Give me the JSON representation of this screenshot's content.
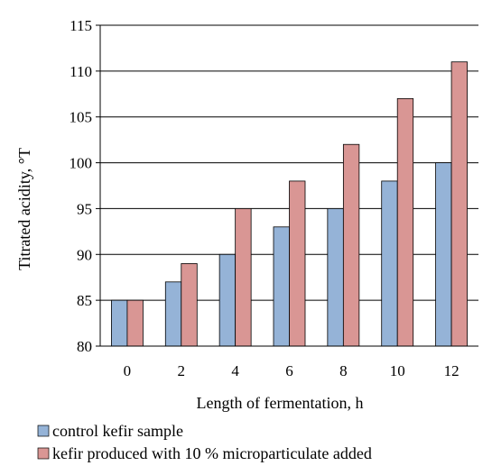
{
  "chart_data": {
    "type": "bar",
    "title": "",
    "xlabel": "Length of fermentation, h",
    "ylabel": "Titrated acidity, °T",
    "categories": [
      "0",
      "2",
      "4",
      "6",
      "8",
      "10",
      "12"
    ],
    "series": [
      {
        "name": "control kefir sample",
        "color": "#95b3d7",
        "values": [
          85,
          87,
          90,
          93,
          95,
          98,
          100
        ]
      },
      {
        "name": "kefir produced with 10 % microparticulate added",
        "color": "#d99694",
        "values": [
          85,
          89,
          95,
          98,
          102,
          107,
          111
        ]
      }
    ],
    "ylim": [
      80,
      115
    ],
    "yticks": [
      "80",
      "85",
      "90",
      "95",
      "100",
      "105",
      "110",
      "115"
    ],
    "grid": true,
    "legend_position": "bottom-left"
  }
}
